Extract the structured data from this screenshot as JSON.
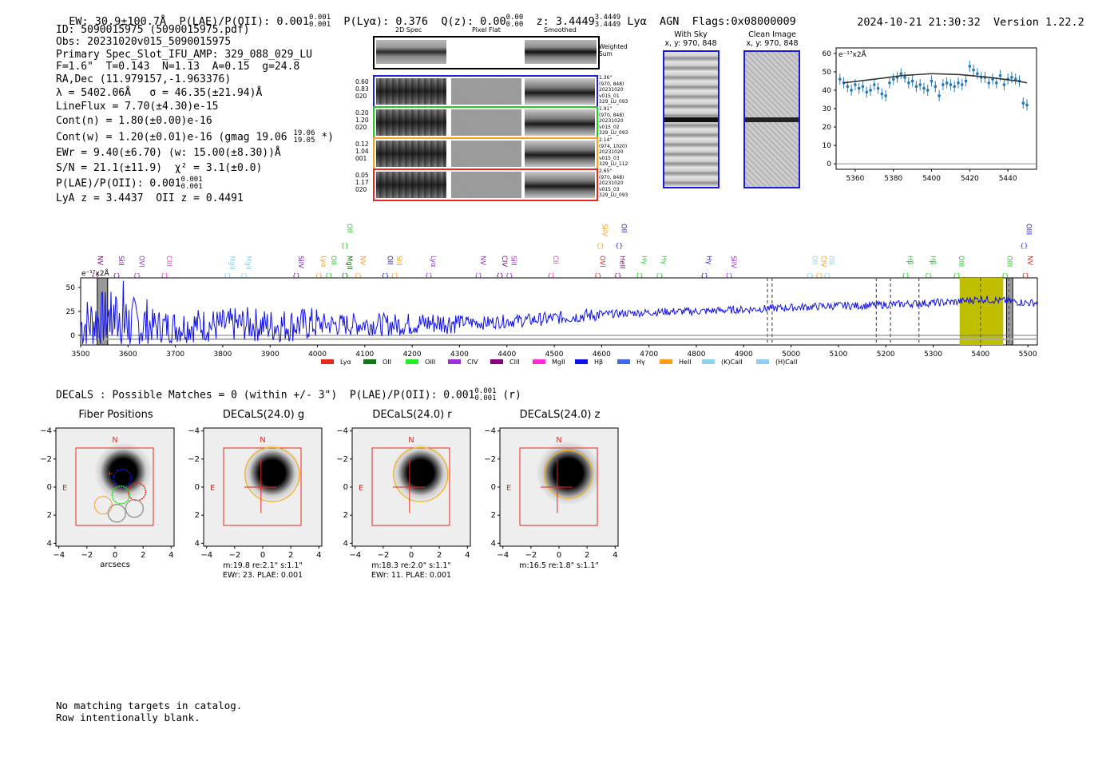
{
  "header": {
    "ew": "EW: 30.9±100.7Å",
    "plae_label": "P(LAE)/P(OII): 0.001",
    "plae_sup": "0.001",
    "plae_sub": "0.001",
    "plya": "P(Lyα): 0.376",
    "qz_label": "Q(z): 0.00",
    "qz_sup": "0.00",
    "qz_sub": "0.00",
    "z_label": "z: 3.4449",
    "z_sup": "3.4449",
    "z_sub": "3.4449",
    "lya": "Lyα",
    "agn": "AGN",
    "flags": "Flags:0x08000009",
    "datetime": "2024-10-21 21:30:32",
    "version": "Version 1.22.2"
  },
  "info": {
    "id": "ID: 5090015975 (5090015975.pdf)",
    "obs": "Obs: 20231020v015_5090015975",
    "primary": "Primary Spec_Slot_IFU_AMP: 329_088_029_LU",
    "fiber": "F=1.6\"  T=0.143  N=1.13  A=0.15  g=24.8",
    "radec": "RA,Dec (11.979157,-1.963376)",
    "lambda": "λ = 5402.06Å   σ = 46.35(±21.94)Å",
    "lineflux": "LineFlux = 7.70(±4.30)e-15",
    "contn": "Cont(n) = 1.80(±0.00)e-16",
    "contw": "Cont(w) = 1.20(±0.01)e-16 (gmag 19.06",
    "contw_sup": "19.06",
    "contw_sub": "19.05",
    "contw_tail": "*)",
    "ewr": "EWr = 9.40(±6.70) (w: 15.00(±8.30))Å",
    "sn": "S/N = 21.1(±11.9)  χ² = 3.1(±0.0)",
    "plae": "P(LAE)/P(OII): 0.001",
    "plae_sup": "0.001",
    "plae_sub": "0.001",
    "redshifts": "LyA z = 3.4437  OII z = 0.4491"
  },
  "cutouts": {
    "col_headers": [
      "2D Spec",
      "Pixel Flat",
      "Smoothed"
    ],
    "weighted_label": "Weighted\nSum",
    "rows": [
      {
        "left": "0.60\n0.83\n020",
        "right": "1.36\"\n(970, 848)\n20231020\nv015_01\n329_LU_093",
        "color": "#1f1fd6"
      },
      {
        "left": "0.20\n1.20\n020",
        "right": "1.91\"\n(970, 848)\n20231020\nv015_02\n329_LU_093",
        "color": "#22cc22"
      },
      {
        "left": "0.12\n1.04\n001",
        "right": "2.14\"\n(974, 1020)\n20231020\nv015_03\n329_LU_112",
        "color": "#ff9c1a"
      },
      {
        "left": "0.05\n1.17\n020",
        "right": "2.65\"\n(970, 848)\n20231020\nv015_03\n329_LU_093",
        "color": "#e8281e"
      }
    ]
  },
  "sky_panels": {
    "with_sky_title": "With Sky",
    "with_sky_coords": "x, y: 970, 848",
    "clean_title": "Clean Image",
    "clean_coords": "x, y: 970, 848"
  },
  "zoom_spectrum": {
    "unit_label": "e⁻¹⁷x2Å",
    "xticks": [
      "5360",
      "5380",
      "5400",
      "5420",
      "5440"
    ],
    "yticks": [
      "0",
      "10",
      "20",
      "30",
      "40",
      "50",
      "60"
    ]
  },
  "full_spectrum": {
    "unit_label": "e⁻¹⁷x2Å",
    "xticks": [
      "3500",
      "3600",
      "3700",
      "3800",
      "3900",
      "4000",
      "4100",
      "4200",
      "4300",
      "4400",
      "4500",
      "4600",
      "4700",
      "4800",
      "4900",
      "5000",
      "5100",
      "5200",
      "5300",
      "5400",
      "5500"
    ],
    "yticks": [
      "0",
      "25",
      "50"
    ],
    "line_labels": [
      {
        "text": "NV",
        "wave": 3531,
        "color": "#8b0080",
        "tier": 0
      },
      {
        "text": "SiII",
        "wave": 3576,
        "color": "#7a1fb8",
        "tier": 0
      },
      {
        "text": "OVI",
        "wave": 3619,
        "color": "#9b30d6",
        "tier": 0
      },
      {
        "text": "CIII",
        "wave": 3677,
        "color": "#ff2bd6",
        "tier": 0
      },
      {
        "text": "MgII",
        "wave": 3810,
        "color": "#8fd0f0",
        "tier": 0
      },
      {
        "text": "MgII",
        "wave": 3845,
        "color": "#8fd0f0",
        "tier": 0
      },
      {
        "text": "SiIV",
        "wave": 3955,
        "color": "#7a1fb8",
        "tier": 0
      },
      {
        "text": "Lyα",
        "wave": 4003,
        "color": "#ff9c1a",
        "tier": 0
      },
      {
        "text": "OII",
        "wave": 4024,
        "color": "#22cc22",
        "tier": 0
      },
      {
        "text": "MgII",
        "wave": 4058,
        "color": "#117711",
        "tier": 0
      },
      {
        "text": "OII",
        "wave": 4058,
        "color": "#22cc22",
        "tier": 1
      },
      {
        "text": "NV",
        "wave": 4086,
        "color": "#ff9c1a",
        "tier": 0
      },
      {
        "text": "OII",
        "wave": 4143,
        "color": "#1f1fd6",
        "tier": 0
      },
      {
        "text": "SiII",
        "wave": 4163,
        "color": "#ff9c1a",
        "tier": 0
      },
      {
        "text": "Lyα",
        "wave": 4235,
        "color": "#9b30d6",
        "tier": 0
      },
      {
        "text": "NV",
        "wave": 4340,
        "color": "#9b30d6",
        "tier": 0
      },
      {
        "text": "CIV",
        "wave": 4385,
        "color": "#8b0080",
        "tier": 0
      },
      {
        "text": "SiII",
        "wave": 4405,
        "color": "#9b30d6",
        "tier": 0
      },
      {
        "text": "CII",
        "wave": 4493,
        "color": "#ff2bd6",
        "tier": 0
      },
      {
        "text": "OVI",
        "wave": 4592,
        "color": "#e8281e",
        "tier": 0
      },
      {
        "text": "SiIV",
        "wave": 4597,
        "color": "#ff9c1a",
        "tier": 1
      },
      {
        "text": "HeII",
        "wave": 4634,
        "color": "#8b0080",
        "tier": 0
      },
      {
        "text": "OII",
        "wave": 4637,
        "color": "#1f1fd6",
        "tier": 1
      },
      {
        "text": "Hγ",
        "wave": 4680,
        "color": "#22cc22",
        "tier": 0
      },
      {
        "text": "Hγ",
        "wave": 4722,
        "color": "#22cc22",
        "tier": 0
      },
      {
        "text": "Hγ",
        "wave": 4817,
        "color": "#1f1fd6",
        "tier": 0
      },
      {
        "text": "SiIV",
        "wave": 4869,
        "color": "#9b30d6",
        "tier": 0
      },
      {
        "text": "OII",
        "wave": 5040,
        "color": "#8fd0f0",
        "tier": 0
      },
      {
        "text": "CIV",
        "wave": 5059,
        "color": "#ff9c1a",
        "tier": 0
      },
      {
        "text": "OII",
        "wave": 5076,
        "color": "#8fd0f0",
        "tier": 0
      },
      {
        "text": "Hβ",
        "wave": 5242,
        "color": "#22cc22",
        "tier": 0
      },
      {
        "text": "Hβ",
        "wave": 5290,
        "color": "#22cc22",
        "tier": 0
      },
      {
        "text": "OIII",
        "wave": 5350,
        "color": "#22cc22",
        "tier": 0
      },
      {
        "text": "OIII",
        "wave": 5452,
        "color": "#22cc22",
        "tier": 0
      },
      {
        "text": "NV",
        "wave": 5495,
        "color": "#e8281e",
        "tier": 0
      },
      {
        "text": "OIII",
        "wave": 5492,
        "color": "#1f1fd6",
        "tier": 1
      }
    ],
    "legend": [
      {
        "label": "Lyα",
        "color": "#e8281e"
      },
      {
        "label": "OII",
        "color": "#117711"
      },
      {
        "label": "OIII",
        "color": "#22ee22"
      },
      {
        "label": "CIV",
        "color": "#9b30d6"
      },
      {
        "label": "CIII",
        "color": "#8b0080"
      },
      {
        "label": "MgII",
        "color": "#ff2bd6"
      },
      {
        "label": "Hβ",
        "color": "#1010e8"
      },
      {
        "label": "Hγ",
        "color": "#4169e1"
      },
      {
        "label": "HeII",
        "color": "#ff9c1a"
      },
      {
        "label": "(K)CaII",
        "color": "#8fd0f0"
      },
      {
        "label": "(H)CaII",
        "color": "#8fd0f0"
      }
    ]
  },
  "decals": {
    "summary": "DECaLS : Possible Matches = 0 (within +/- 3\")  P(LAE)/P(OII): 0.001",
    "summary_sup": "0.001",
    "summary_sub": "0.001",
    "summary_tail": "(r)",
    "panels": [
      {
        "title": "Fiber Positions",
        "xlabel": "arcsecs",
        "cap1": "",
        "cap2": ""
      },
      {
        "title": "DECaLS(24.0) g",
        "xlabel": "",
        "cap1": "m:19.8  re:2.1\"  s:1.1\"",
        "cap2": "EWr: 23. PLAE: 0.001"
      },
      {
        "title": "DECaLS(24.0) r",
        "xlabel": "",
        "cap1": "m:18.3  re:2.0\"  s:1.1\"",
        "cap2": "EWr: 11. PLAE: 0.001"
      },
      {
        "title": "DECaLS(24.0) z",
        "xlabel": "",
        "cap1": "m:16.5  re:1.8\"  s:1.1\"",
        "cap2": ""
      }
    ],
    "north": "N",
    "east": "E",
    "ticks": [
      "−4",
      "−2",
      "0",
      "2",
      "4"
    ]
  },
  "footer": {
    "line1": "No matching targets in catalog.",
    "line2": "Row intentionally blank."
  },
  "chart_data": [
    {
      "type": "line",
      "title": "",
      "xlabel": "",
      "ylabel": "e-17 x2Å",
      "xlim": [
        3500,
        5520
      ],
      "ylim": [
        -10,
        60
      ],
      "grid": false,
      "series": [
        {
          "name": "flux",
          "x": [
            3500,
            3550,
            3600,
            3650,
            3700,
            3750,
            3800,
            3850,
            3900,
            3950,
            4000,
            4050,
            4100,
            4150,
            4200,
            4250,
            4300,
            4350,
            4400,
            4450,
            4500,
            4550,
            4600,
            4650,
            4700,
            4750,
            4800,
            4850,
            4900,
            4950,
            5000,
            5050,
            5100,
            5150,
            5200,
            5250,
            5300,
            5350,
            5400,
            5450,
            5500
          ],
          "y": [
            10,
            18,
            12,
            10,
            9,
            11,
            10,
            12,
            10,
            11,
            12,
            11,
            12,
            11,
            12,
            13,
            14,
            13,
            15,
            16,
            18,
            20,
            22,
            23,
            24,
            25,
            25,
            26,
            27,
            28,
            29,
            30,
            31,
            31,
            32,
            33,
            34,
            35,
            38,
            36,
            34
          ]
        }
      ],
      "highlight_band": [
        5356,
        5448
      ],
      "vertical_marker": 5402
    },
    {
      "type": "scatter",
      "title": "",
      "xlabel": "",
      "ylabel": "e-17 x2Å",
      "xlim": [
        5350,
        5455
      ],
      "ylim": [
        -3,
        63
      ],
      "series": [
        {
          "name": "data",
          "x": [
            5352,
            5354,
            5356,
            5358,
            5360,
            5362,
            5364,
            5366,
            5368,
            5370,
            5372,
            5374,
            5376,
            5378,
            5380,
            5382,
            5384,
            5386,
            5388,
            5390,
            5392,
            5394,
            5396,
            5398,
            5400,
            5402,
            5404,
            5406,
            5408,
            5410,
            5412,
            5414,
            5416,
            5418,
            5420,
            5422,
            5424,
            5426,
            5428,
            5430,
            5432,
            5434,
            5436,
            5438,
            5440,
            5442,
            5444,
            5446,
            5448,
            5450
          ],
          "y": [
            46,
            44,
            42,
            40,
            43,
            41,
            42,
            39,
            40,
            43,
            41,
            38,
            37,
            44,
            46,
            47,
            49,
            47,
            44,
            45,
            42,
            43,
            41,
            40,
            45,
            42,
            37,
            43,
            44,
            43,
            42,
            44,
            43,
            45,
            53,
            51,
            49,
            47,
            47,
            44,
            46,
            44,
            48,
            43,
            46,
            47,
            46,
            45,
            33,
            32
          ]
        },
        {
          "name": "fit",
          "x": [
            5354,
            5370,
            5385,
            5400,
            5415,
            5430,
            5445,
            5450
          ],
          "y": [
            44,
            46,
            48,
            49,
            48.5,
            47,
            45,
            44
          ]
        }
      ]
    }
  ]
}
